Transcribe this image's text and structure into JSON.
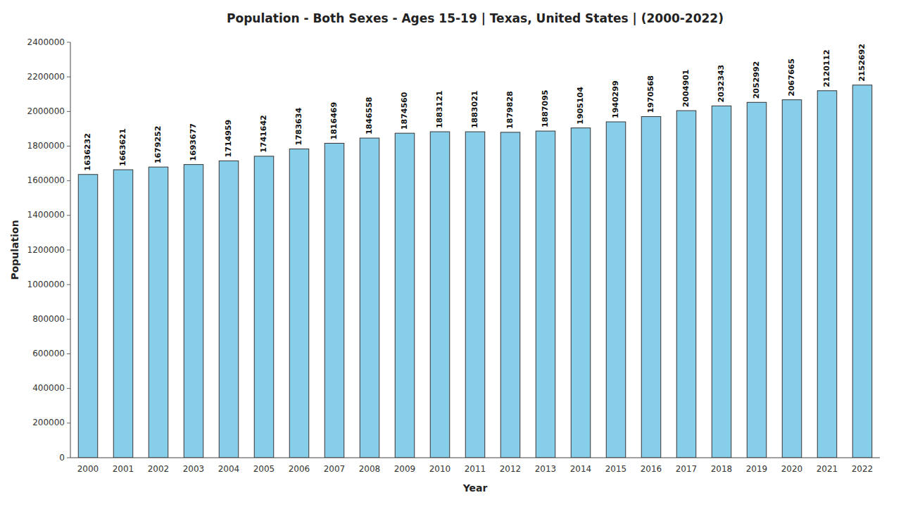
{
  "chart_data": {
    "type": "bar",
    "title": "Population - Both Sexes - Ages 15-19 | Texas, United States |  (2000-2022)",
    "x_label": "Year",
    "y_label": "Population",
    "categories": [
      "2000",
      "2001",
      "2002",
      "2003",
      "2004",
      "2005",
      "2006",
      "2007",
      "2008",
      "2009",
      "2010",
      "2011",
      "2012",
      "2013",
      "2014",
      "2015",
      "2016",
      "2017",
      "2018",
      "2019",
      "2020",
      "2021",
      "2022"
    ],
    "values": [
      1636232,
      1663621,
      1679252,
      1693677,
      1714959,
      1741642,
      1783634,
      1816469,
      1846558,
      1874560,
      1883121,
      1883021,
      1879828,
      1887095,
      1905104,
      1940299,
      1970568,
      2004901,
      2032343,
      2052992,
      2067665,
      2120112,
      2152692
    ],
    "color": "#87CEEB",
    "ylim": [
      0,
      2400000
    ],
    "yticks": [
      0,
      200000,
      400000,
      600000,
      800000,
      1000000,
      1200000,
      1400000,
      1600000,
      1800000,
      2000000,
      2200000,
      2400000
    ],
    "grid": false,
    "data_labels": true
  }
}
